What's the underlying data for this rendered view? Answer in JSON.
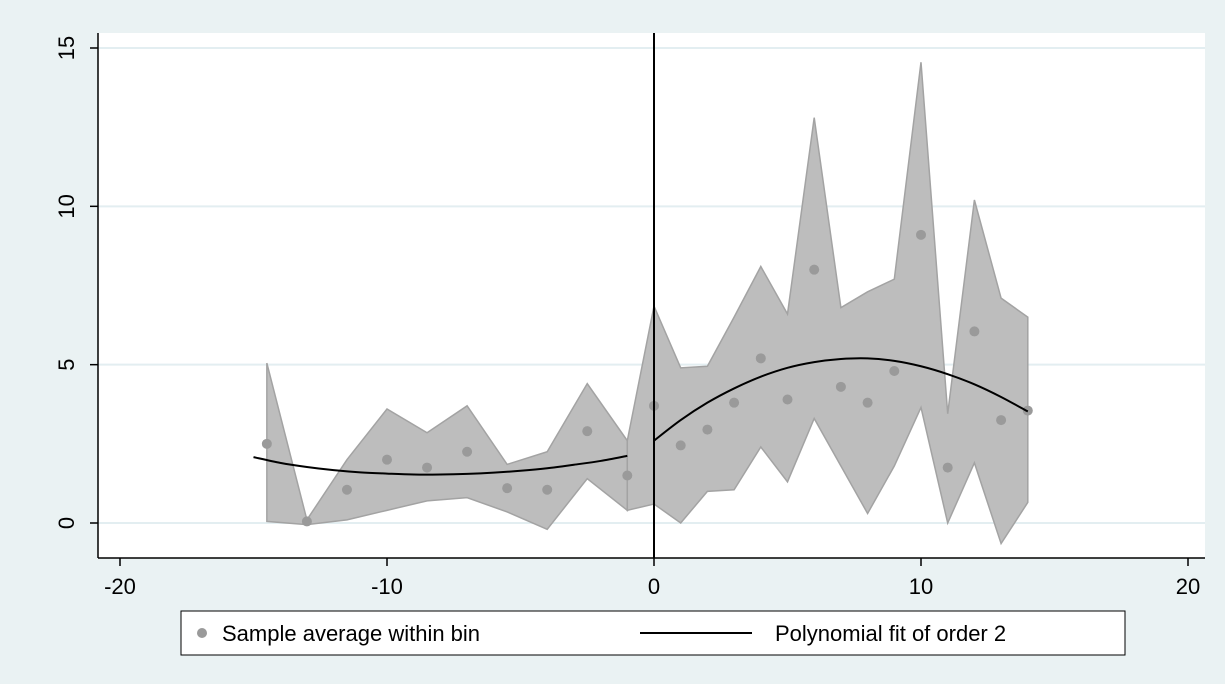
{
  "colors": {
    "outer_background": "#eaf2f3",
    "plot_background": "#ffffff",
    "gridline": "#e3eef1",
    "band_fill": "#bdbdbd",
    "band_edge": "#a3a3a3",
    "marker": "#9a9a9a",
    "fit_line": "#000000",
    "cutoff_line": "#000000"
  },
  "chart_data": {
    "type": "scatter",
    "title": "",
    "xlabel": "",
    "ylabel": "",
    "xlim": [
      -20,
      20
    ],
    "ylim": [
      0,
      15
    ],
    "x_ticks": [
      -20,
      -10,
      0,
      10,
      20
    ],
    "x_tick_labels": [
      "-20",
      "-10",
      "0",
      "10",
      "20"
    ],
    "y_ticks": [
      0,
      5,
      10,
      15
    ],
    "y_tick_labels": [
      "0",
      "5",
      "10",
      "15"
    ],
    "grid": true,
    "cutoff_x": 0,
    "legend": {
      "position": "bottom",
      "entries": [
        "Sample average within bin",
        "Polynomial fit of order 2"
      ]
    },
    "series": [
      {
        "name": "Sample average within bin",
        "kind": "scatter",
        "x": [
          -14.5,
          -13,
          -11.5,
          -10,
          -8.5,
          -7,
          -5.5,
          -4,
          -2.5,
          -1,
          0,
          1,
          2,
          3,
          4,
          5,
          6,
          7,
          8,
          9,
          10,
          11,
          12,
          13,
          14
        ],
        "y": [
          2.5,
          0.05,
          1.05,
          2.0,
          1.75,
          2.25,
          1.1,
          1.05,
          2.9,
          1.5,
          3.7,
          2.45,
          2.95,
          3.8,
          5.2,
          3.9,
          8.0,
          4.3,
          3.8,
          4.8,
          9.1,
          1.75,
          6.05,
          3.25,
          3.55
        ]
      },
      {
        "kind": "band",
        "segments": [
          {
            "x": [
              -14.5,
              -13,
              -11.5,
              -10,
              -8.5,
              -7,
              -5.5,
              -4,
              -2.5,
              -1
            ],
            "upper": [
              5.05,
              0.1,
              2.0,
              3.6,
              2.85,
              3.7,
              1.85,
              2.25,
              4.4,
              2.6
            ],
            "lower": [
              0.05,
              -0.05,
              0.1,
              0.4,
              0.7,
              0.8,
              0.35,
              -0.2,
              1.4,
              0.4
            ]
          },
          {
            "x": [
              -1,
              0,
              1,
              2,
              3,
              4,
              5,
              6,
              7,
              8,
              9,
              10,
              11,
              12,
              13,
              14
            ],
            "upper": [
              2.6,
              6.85,
              4.9,
              4.95,
              6.5,
              8.1,
              6.6,
              12.8,
              6.8,
              7.3,
              7.7,
              14.55,
              3.45,
              10.2,
              7.1,
              6.5
            ],
            "lower": [
              0.4,
              0.6,
              0.0,
              1.0,
              1.05,
              2.4,
              1.3,
              3.3,
              1.8,
              0.3,
              1.8,
              3.65,
              0.0,
              1.9,
              -0.65,
              0.65
            ]
          }
        ]
      },
      {
        "name": "Polynomial fit of order 2",
        "kind": "line",
        "segments": [
          {
            "x": [
              -15,
              -14,
              -13,
              -12,
              -11,
              -10,
              -9,
              -8,
              -7,
              -6,
              -5,
              -4,
              -3,
              -2,
              -1
            ],
            "y": [
              2.08,
              1.9,
              1.77,
              1.67,
              1.6,
              1.56,
              1.53,
              1.53,
              1.55,
              1.59,
              1.65,
              1.73,
              1.84,
              1.96,
              2.12
            ]
          },
          {
            "x": [
              0,
              1,
              2,
              3,
              4,
              5,
              6,
              7,
              8,
              9,
              10,
              11,
              12,
              13,
              14
            ],
            "y": [
              2.6,
              3.25,
              3.8,
              4.25,
              4.62,
              4.9,
              5.08,
              5.18,
              5.2,
              5.12,
              4.95,
              4.7,
              4.38,
              3.98,
              3.52
            ]
          }
        ]
      }
    ]
  }
}
